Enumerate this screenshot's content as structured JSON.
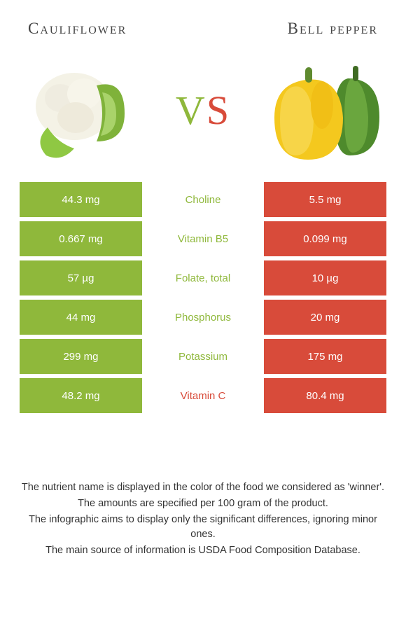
{
  "header": {
    "left_title": "Cauliflower",
    "right_title": "Bell pepper"
  },
  "vs": {
    "v": "V",
    "s": "S"
  },
  "colors": {
    "left": "#8fb83b",
    "right": "#d84b3a",
    "background": "#ffffff",
    "text": "#333333"
  },
  "table": {
    "rows": [
      {
        "left": "44.3 mg",
        "label": "Choline",
        "right": "5.5 mg",
        "winner": "left"
      },
      {
        "left": "0.667 mg",
        "label": "Vitamin B5",
        "right": "0.099 mg",
        "winner": "left"
      },
      {
        "left": "57 µg",
        "label": "Folate, total",
        "right": "10 µg",
        "winner": "left"
      },
      {
        "left": "44 mg",
        "label": "Phosphorus",
        "right": "20 mg",
        "winner": "left"
      },
      {
        "left": "299 mg",
        "label": "Potassium",
        "right": "175 mg",
        "winner": "left"
      },
      {
        "left": "48.2 mg",
        "label": "Vitamin C",
        "right": "80.4 mg",
        "winner": "right"
      }
    ]
  },
  "notes": [
    "The nutrient name is displayed in the color of the food we considered as 'winner'.",
    "The amounts are specified per 100 gram of the product.",
    "The infographic aims to display only the significant differences, ignoring minor ones.",
    "The main source of information is USDA Food Composition Database."
  ],
  "illustrations": {
    "left_name": "cauliflower-illustration",
    "right_name": "bell-pepper-illustration"
  }
}
